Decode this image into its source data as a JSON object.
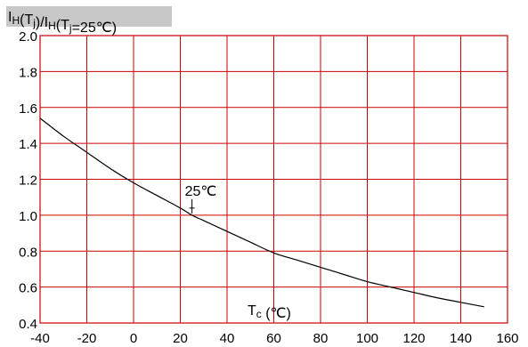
{
  "chart_data": {
    "type": "line",
    "ylabel": {
      "main": "IH(Tj)/IH(Tj=25℃)",
      "parts": [
        {
          "text": "I",
          "sub": "H"
        },
        {
          "text": "(T",
          "sub": "j"
        },
        {
          "text": ")/I",
          "sub": "H"
        },
        {
          "text": "(T",
          "sub": "j"
        },
        {
          "text": "=25℃)",
          "sub": ""
        }
      ]
    },
    "xlabel": {
      "main": "Tc (℃)",
      "parts": [
        {
          "text": "T",
          "sub": "c"
        },
        {
          "text": " (℃)",
          "sub": ""
        }
      ]
    },
    "xlim": [
      -40,
      160
    ],
    "ylim": [
      0.4,
      2.0
    ],
    "x_ticks": [
      -40,
      -20,
      0,
      20,
      40,
      60,
      80,
      100,
      120,
      140,
      160
    ],
    "y_ticks": [
      0.4,
      0.6,
      0.8,
      1.0,
      1.2,
      1.4,
      1.6,
      1.8,
      2.0
    ],
    "x_tick_labels": [
      "-40",
      "-20",
      "0",
      "20",
      "40",
      "60",
      "80",
      "100",
      "120",
      "140",
      "160"
    ],
    "y_tick_labels": [
      "0.4",
      "0.6",
      "0.8",
      "1.0",
      "1.2",
      "1.4",
      "1.6",
      "1.8",
      "2.0"
    ],
    "grid": true,
    "series": [
      {
        "x": [
          -40,
          -30,
          -20,
          -10,
          0,
          10,
          20,
          25,
          30,
          40,
          50,
          60,
          70,
          80,
          90,
          100,
          110,
          120,
          130,
          140,
          150
        ],
        "y": [
          1.54,
          1.44,
          1.35,
          1.26,
          1.18,
          1.11,
          1.04,
          1.0,
          0.97,
          0.91,
          0.85,
          0.79,
          0.75,
          0.71,
          0.67,
          0.63,
          0.6,
          0.57,
          0.54,
          0.515,
          0.49
        ]
      }
    ],
    "annotations": [
      {
        "text": "25℃",
        "x": 25,
        "y": 1.0
      }
    ],
    "colors": {
      "grid": "#cc0000",
      "line": "#000000",
      "label_bg": "#c8c8c8"
    }
  }
}
